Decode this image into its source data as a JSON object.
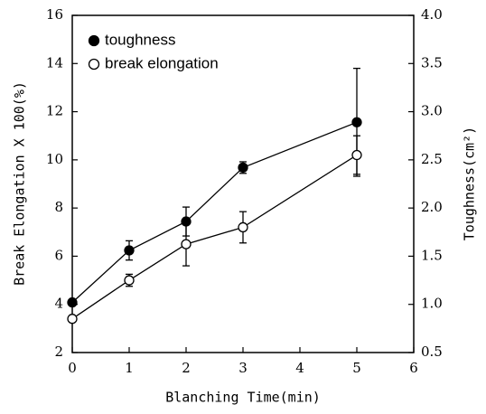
{
  "chart_data": {
    "type": "line",
    "xlabel": "Blanching Time(min)",
    "ylabel": "Break Elongation X 100(%)",
    "y2label": "Toughness(cm²)",
    "x": [
      0,
      1,
      2,
      3,
      5
    ],
    "xlim": [
      0,
      6
    ],
    "xticks": [
      0,
      1,
      2,
      3,
      4,
      5,
      6
    ],
    "ylim": [
      2,
      16
    ],
    "yticks": [
      2,
      4,
      6,
      8,
      10,
      12,
      14,
      16
    ],
    "y2lim": [
      0.5,
      4.0
    ],
    "y2ticks": [
      0.5,
      {
        "value": 1,
        "label": "1.0"
      },
      1.5,
      {
        "value": 2,
        "label": "2.0"
      },
      2.5,
      {
        "value": 3,
        "label": "3.0"
      },
      3.5,
      {
        "value": 4,
        "label": "4.0"
      }
    ],
    "legend": "upper left",
    "series": [
      {
        "name": "toughness",
        "color": "#000000",
        "marker": "filled",
        "axis": "y2",
        "values": [
          1.02,
          1.56,
          1.86,
          2.42,
          2.89
        ],
        "errors": [
          0,
          0.1,
          0.15,
          0.06,
          0.56
        ]
      },
      {
        "name": "break elongation",
        "color": "#000000",
        "marker": "open",
        "values": [
          3.4,
          5.0,
          6.5,
          7.2,
          10.2
        ],
        "errors": [
          0,
          0.25,
          0.9,
          0.65,
          0.8
        ]
      }
    ]
  }
}
